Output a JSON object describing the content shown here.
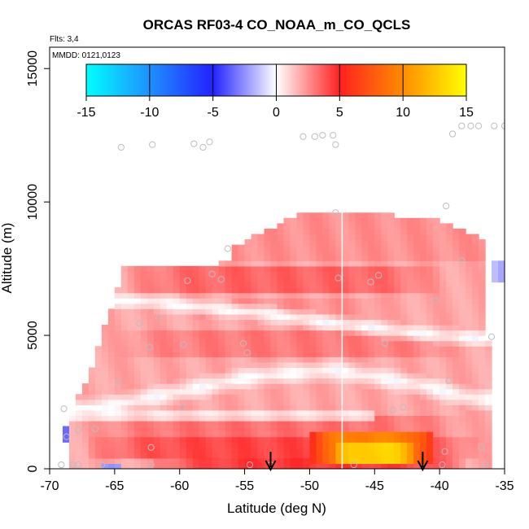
{
  "chart_data": {
    "type": "heatmap",
    "title": "ORCAS RF03-4 CO_NOAA_m_CO_QCLS",
    "flights_label": "Flts: 3,4",
    "date_label": "MMDD: 0121,0123",
    "xlabel": "Latitude (deg N)",
    "ylabel": "Altitude (m)",
    "xlim": [
      -70,
      -35
    ],
    "ylim": [
      0,
      15800
    ],
    "x_ticks": [
      -70,
      -65,
      -60,
      -55,
      -50,
      -45,
      -40,
      -35
    ],
    "x_tick_labels": [
      "-70",
      "-65",
      "-60",
      "-55",
      "-50",
      "-45",
      "-40",
      "-35"
    ],
    "y_ticks": [
      0,
      5000,
      10000,
      15000
    ],
    "y_tick_labels": [
      "0",
      "5000",
      "10000",
      "15000"
    ],
    "colorbar": {
      "range": [
        -15,
        15
      ],
      "ticks": [
        -15,
        -10,
        -5,
        0,
        5,
        10,
        15
      ],
      "tick_labels": [
        "-15",
        "-10",
        "-5",
        "0",
        "5",
        "10",
        "15"
      ],
      "stops": [
        {
          "value": -15,
          "color": "#00ffff"
        },
        {
          "value": -10,
          "color": "#1e90ff"
        },
        {
          "value": -5,
          "color": "#2222ff"
        },
        {
          "value": 0,
          "color": "#ffffff"
        },
        {
          "value": 5,
          "color": "#ff2020"
        },
        {
          "value": 10,
          "color": "#ff8c00"
        },
        {
          "value": 15,
          "color": "#ffff00"
        }
      ]
    },
    "regions": [
      {
        "name": "upper-layer",
        "x": [
          -56,
          -36.5
        ],
        "y_lo_at_x": [
          [
            -56,
            7800
          ],
          [
            -36.5,
            7800
          ]
        ],
        "y_hi_at_x": [
          [
            -56,
            8300
          ],
          [
            -51,
            9500
          ],
          [
            -47.5,
            9700
          ],
          [
            -40,
            9300
          ],
          [
            -36.5,
            8600
          ]
        ],
        "value": 2.5
      },
      {
        "name": "main-mass",
        "x": [
          -68.5,
          -36.2
        ],
        "y_lo_at_x": [
          [
            -68.5,
            0
          ],
          [
            -36.2,
            0
          ]
        ],
        "y_hi_at_x": [
          [
            -68.5,
            2200
          ],
          [
            -67,
            3500
          ],
          [
            -64.5,
            7100
          ],
          [
            -60,
            7400
          ],
          [
            -56,
            7800
          ],
          [
            -36.5,
            7800
          ],
          [
            -36.5,
            6700
          ],
          [
            -35.8,
            5500
          ],
          [
            -36.2,
            2000
          ]
        ],
        "value": 2.0
      },
      {
        "name": "band-7200",
        "x": [
          -64.5,
          -39.5
        ],
        "y": [
          6700,
          7600
        ],
        "value": 3.5
      },
      {
        "name": "band-4700",
        "x": [
          -66,
          -37
        ],
        "y": [
          4300,
          5200
        ],
        "value": 3.0
      },
      {
        "name": "band-6000",
        "x": [
          -61,
          -42
        ],
        "y": [
          5700,
          6400
        ],
        "value": 2.5
      },
      {
        "name": "low-band-1400",
        "x": [
          -68,
          -37
        ],
        "y": [
          1100,
          1900
        ],
        "value": 3.2
      },
      {
        "name": "low-band-800",
        "x": [
          -67,
          -37
        ],
        "y": [
          500,
          1100
        ],
        "value": 4.2
      },
      {
        "name": "core-hot",
        "x": [
          -50,
          -40.5
        ],
        "y": [
          150,
          1400
        ],
        "value": 9.5
      },
      {
        "name": "core-peak",
        "x": [
          -48.5,
          -41.5
        ],
        "y": [
          200,
          900
        ],
        "value": 13.0
      },
      {
        "name": "surface-band",
        "x": [
          -62,
          -38
        ],
        "y": [
          100,
          450
        ],
        "value": 4.5
      },
      {
        "name": "blue-left-1",
        "x": [
          -69.2,
          -68.6
        ],
        "y": [
          1000,
          1600
        ],
        "value": -3.5
      },
      {
        "name": "blue-left-2",
        "x": [
          -66,
          -64.5
        ],
        "y": [
          0,
          200
        ],
        "value": -2.5
      },
      {
        "name": "blue-right",
        "x": [
          -35.8,
          -35
        ],
        "y": [
          7000,
          7800
        ],
        "value": -2.0
      }
    ],
    "white_band_y": [
      [
        -63,
        6300
      ],
      [
        -58,
        6050
      ],
      [
        -53,
        5800
      ],
      [
        -47,
        5400
      ],
      [
        -42,
        5100
      ],
      [
        -37,
        4900
      ]
    ],
    "white_band2_y": [
      [
        -66,
        2300
      ],
      [
        -60,
        2900
      ],
      [
        -54,
        3500
      ],
      [
        -48,
        3700
      ],
      [
        -42,
        3200
      ],
      [
        -37,
        2600
      ]
    ],
    "vertical_line_x": -47.5,
    "arrows_x": [
      -53,
      -41.3
    ],
    "points": [
      {
        "x": -64.5,
        "y": 12050
      },
      {
        "x": -62.1,
        "y": 12150
      },
      {
        "x": -58.9,
        "y": 12180
      },
      {
        "x": -58.2,
        "y": 12050
      },
      {
        "x": -57.7,
        "y": 12250
      },
      {
        "x": -50.5,
        "y": 12450
      },
      {
        "x": -49.6,
        "y": 12450
      },
      {
        "x": -49.0,
        "y": 12500
      },
      {
        "x": -48.2,
        "y": 12500
      },
      {
        "x": -48.0,
        "y": 12150
      },
      {
        "x": -39.0,
        "y": 12550
      },
      {
        "x": -38.3,
        "y": 12850
      },
      {
        "x": -37.6,
        "y": 12850
      },
      {
        "x": -37.0,
        "y": 12850
      },
      {
        "x": -35.8,
        "y": 12850
      },
      {
        "x": -35.0,
        "y": 12850
      },
      {
        "x": -48.0,
        "y": 9600
      },
      {
        "x": -39.5,
        "y": 9850
      },
      {
        "x": -56.3,
        "y": 8250
      },
      {
        "x": -38.3,
        "y": 7800
      },
      {
        "x": -57.5,
        "y": 7300
      },
      {
        "x": -59.4,
        "y": 7050
      },
      {
        "x": -56.8,
        "y": 7100
      },
      {
        "x": -47.8,
        "y": 7150
      },
      {
        "x": -44.7,
        "y": 7250
      },
      {
        "x": -45.3,
        "y": 7000
      },
      {
        "x": -40.3,
        "y": 6300
      },
      {
        "x": -61.6,
        "y": 5650
      },
      {
        "x": -63.1,
        "y": 5450
      },
      {
        "x": -55.1,
        "y": 4700
      },
      {
        "x": -59.7,
        "y": 4650
      },
      {
        "x": -62.3,
        "y": 4550
      },
      {
        "x": -54.8,
        "y": 4350
      },
      {
        "x": -44.2,
        "y": 4700
      },
      {
        "x": -36.0,
        "y": 4950
      },
      {
        "x": -39.3,
        "y": 3300
      },
      {
        "x": -64.7,
        "y": 3250
      },
      {
        "x": -59.8,
        "y": 2300
      },
      {
        "x": -68.9,
        "y": 2250
      },
      {
        "x": -42.8,
        "y": 2300
      },
      {
        "x": -43.6,
        "y": 2200
      },
      {
        "x": -66.5,
        "y": 1500
      },
      {
        "x": -67.8,
        "y": 1450
      },
      {
        "x": -68.7,
        "y": 1200
      },
      {
        "x": -62.2,
        "y": 800
      },
      {
        "x": -39.6,
        "y": 650
      },
      {
        "x": -36.8,
        "y": 800
      },
      {
        "x": -66.0,
        "y": 150
      },
      {
        "x": -67.8,
        "y": 150
      },
      {
        "x": -68.2,
        "y": 150
      },
      {
        "x": -69.1,
        "y": 150
      },
      {
        "x": -62.2,
        "y": 150
      },
      {
        "x": -54.6,
        "y": 150
      },
      {
        "x": -46.6,
        "y": 150
      },
      {
        "x": -39.8,
        "y": 150
      },
      {
        "x": -36.5,
        "y": 150
      },
      {
        "x": -53.0,
        "y": 150
      }
    ]
  }
}
